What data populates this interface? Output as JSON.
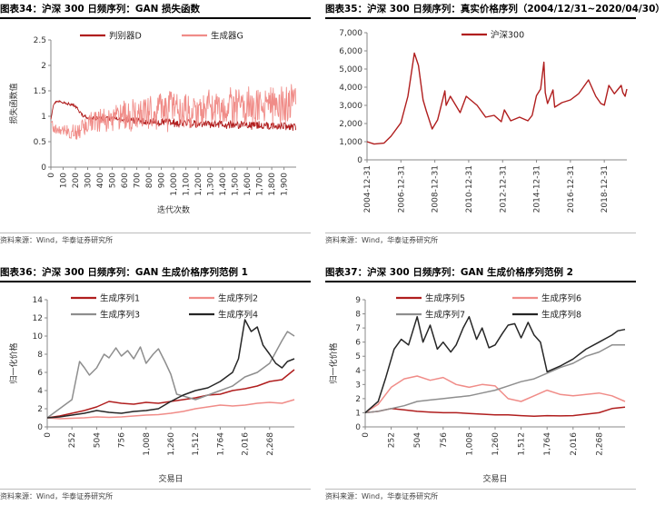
{
  "source": "资料来源：Wind，华泰证券研究所",
  "colors": {
    "dark_red": "#b01e1e",
    "salmon": "#f08c88",
    "gray": "#8e8e8e",
    "black": "#262626",
    "axis": "#888888"
  },
  "chart_data": [
    {
      "id": "fig34",
      "type": "line",
      "title": "图表34：沪深 300 日频序列：GAN 损失函数",
      "xlabel": "迭代次数",
      "ylabel": "损失函数值",
      "xlim": [
        0,
        1999
      ],
      "ylim": [
        0,
        2.5
      ],
      "xticks": [
        0,
        100,
        200,
        300,
        400,
        500,
        600,
        700,
        800,
        900,
        1000,
        1100,
        1200,
        1300,
        1400,
        1500,
        1600,
        1700,
        1800,
        1900
      ],
      "xtick_labels": [
        "0",
        "100",
        "200",
        "300",
        "400",
        "500",
        "600",
        "700",
        "800",
        "900",
        "1,000",
        "1,100",
        "1,200",
        "1,300",
        "1,400",
        "1,500",
        "1,600",
        "1,700",
        "1,800",
        "1,900"
      ],
      "yticks": [
        0,
        0.5,
        1,
        1.5,
        2,
        2.5
      ],
      "ytick_labels": [
        "0",
        "0.5",
        "1",
        "1.5",
        "2",
        "2.5"
      ],
      "legend": "top",
      "series": [
        {
          "name": "判别器D",
          "color": "#b01e1e",
          "x": [
            0,
            20,
            50,
            100,
            150,
            200,
            230,
            260,
            300,
            350,
            400,
            450,
            500,
            600,
            700,
            800,
            900,
            1000,
            1100,
            1200,
            1300,
            1400,
            1500,
            1600,
            1700,
            1800,
            1900,
            1999
          ],
          "y": [
            0.95,
            1.22,
            1.3,
            1.27,
            1.24,
            1.2,
            1.1,
            1.02,
            0.97,
            0.98,
            0.95,
            0.96,
            0.95,
            0.93,
            0.92,
            0.9,
            0.88,
            0.87,
            0.86,
            0.85,
            0.84,
            0.84,
            0.83,
            0.82,
            0.82,
            0.81,
            0.81,
            0.8
          ]
        },
        {
          "name": "生成器G",
          "color": "#f08c88",
          "x": [
            0,
            20,
            50,
            100,
            150,
            200,
            230,
            260,
            300,
            350,
            400,
            450,
            500,
            600,
            700,
            800,
            900,
            1000,
            1100,
            1200,
            1300,
            1400,
            1500,
            1600,
            1700,
            1800,
            1900,
            1999
          ],
          "y": [
            0.95,
            0.78,
            0.73,
            0.72,
            0.7,
            0.68,
            0.72,
            0.78,
            0.88,
            0.9,
            0.93,
            0.95,
            0.97,
            1.0,
            1.03,
            1.06,
            1.09,
            1.12,
            1.14,
            1.15,
            1.16,
            1.17,
            1.18,
            1.19,
            1.2,
            1.22,
            1.23,
            1.24
          ]
        }
      ]
    },
    {
      "id": "fig35",
      "type": "line",
      "title": "图表35：沪深 300 日频序列：真实价格序列（2004/12/31~2020/04/30）",
      "xlabel": "",
      "ylabel": "",
      "xlim": [
        "2004-12-31",
        "2020-04-30"
      ],
      "ylim": [
        0,
        7000
      ],
      "xticks": [
        "2004-12-31",
        "2006-12-31",
        "2008-12-31",
        "2010-12-31",
        "2012-12-31",
        "2014-12-31",
        "2016-12-31",
        "2018-12-31"
      ],
      "yticks": [
        0,
        1000,
        2000,
        3000,
        4000,
        5000,
        6000,
        7000
      ],
      "ytick_labels": [
        "0",
        "1,000",
        "2,000",
        "3,000",
        "4,000",
        "5,000",
        "6,000",
        "7,000"
      ],
      "legend": "top",
      "series": [
        {
          "name": "沪深300",
          "color": "#b01e1e",
          "x": [
            "2004-12-31",
            "2005-06-01",
            "2005-12-31",
            "2006-06-01",
            "2006-12-31",
            "2007-05-31",
            "2007-10-16",
            "2008-01-14",
            "2008-04-21",
            "2008-06-30",
            "2008-11-04",
            "2009-03-01",
            "2009-08-04",
            "2009-09-01",
            "2009-11-30",
            "2010-06-30",
            "2010-11-08",
            "2011-06-30",
            "2011-12-31",
            "2012-06-30",
            "2012-12-03",
            "2013-02-08",
            "2013-06-25",
            "2013-12-31",
            "2014-06-30",
            "2014-09-30",
            "2014-12-31",
            "2015-03-31",
            "2015-06-08",
            "2015-07-08",
            "2015-08-26",
            "2015-12-22",
            "2016-01-28",
            "2016-06-30",
            "2016-12-31",
            "2017-06-30",
            "2018-01-24",
            "2018-06-30",
            "2018-10-18",
            "2018-12-31",
            "2019-04-08",
            "2019-08-06",
            "2019-12-31",
            "2020-02-03",
            "2020-03-23",
            "2020-04-30"
          ],
          "y": [
            1000,
            870,
            920,
            1300,
            2040,
            3500,
            5877,
            5200,
            3300,
            2700,
            1700,
            2200,
            3800,
            3000,
            3500,
            2600,
            3500,
            3000,
            2350,
            2450,
            2100,
            2750,
            2150,
            2350,
            2150,
            2450,
            3530,
            3900,
            5380,
            3700,
            3100,
            3850,
            2900,
            3150,
            3300,
            3650,
            4400,
            3500,
            3100,
            3010,
            4100,
            3640,
            4100,
            3700,
            3500,
            3900
          ]
        }
      ]
    },
    {
      "id": "fig36",
      "type": "line",
      "title": "图表36：沪深 300 日频序列：GAN 生成价格序列范例 1",
      "xlabel": "交易日",
      "ylabel": "归一化价格",
      "xlim": [
        0,
        2520
      ],
      "ylim": [
        0,
        14
      ],
      "xticks": [
        0,
        252,
        504,
        756,
        1008,
        1260,
        1512,
        1764,
        2016,
        2268
      ],
      "xtick_labels": [
        "0",
        "252",
        "504",
        "756",
        "1,008",
        "1,260",
        "1,512",
        "1,764",
        "2,016",
        "2,268"
      ],
      "yticks": [
        0,
        2,
        4,
        6,
        8,
        10,
        12,
        14
      ],
      "ytick_labels": [
        "0",
        "2",
        "4",
        "6",
        "8",
        "10",
        "12",
        "14"
      ],
      "legend": "top",
      "series": [
        {
          "name": "生成序列1",
          "color": "#b01e1e",
          "x": [
            0,
            126,
            252,
            378,
            504,
            630,
            756,
            882,
            1008,
            1134,
            1260,
            1386,
            1512,
            1638,
            1764,
            1890,
            2016,
            2142,
            2268,
            2394,
            2520
          ],
          "y": [
            1,
            1.2,
            1.5,
            1.8,
            2.2,
            2.8,
            2.6,
            2.5,
            2.7,
            2.6,
            2.8,
            3.0,
            3.2,
            3.5,
            3.6,
            4.0,
            4.2,
            4.5,
            5.0,
            5.2,
            6.3
          ]
        },
        {
          "name": "生成序列2",
          "color": "#f08c88",
          "x": [
            0,
            126,
            252,
            378,
            504,
            630,
            756,
            882,
            1008,
            1134,
            1260,
            1386,
            1512,
            1638,
            1764,
            1890,
            2016,
            2142,
            2268,
            2394,
            2520
          ],
          "y": [
            1,
            0.9,
            0.95,
            1.0,
            1.1,
            1.05,
            1.1,
            1.2,
            1.3,
            1.35,
            1.5,
            1.7,
            2.0,
            2.2,
            2.4,
            2.3,
            2.4,
            2.6,
            2.7,
            2.6,
            3.0
          ]
        },
        {
          "name": "生成序列3",
          "color": "#8e8e8e",
          "x": [
            0,
            126,
            252,
            330,
            380,
            430,
            504,
            580,
            630,
            700,
            756,
            820,
            882,
            950,
            1008,
            1080,
            1134,
            1200,
            1260,
            1320,
            1386,
            1512,
            1638,
            1764,
            1890,
            2016,
            2142,
            2268,
            2394,
            2450,
            2520
          ],
          "y": [
            1,
            2,
            3.0,
            7.2,
            6.5,
            5.7,
            6.5,
            8.0,
            7.6,
            8.7,
            7.8,
            8.4,
            7.5,
            8.8,
            7.0,
            8.0,
            8.6,
            7.2,
            5.8,
            3.6,
            3.4,
            3.0,
            3.5,
            4.0,
            4.5,
            5.5,
            6.0,
            7.0,
            9.5,
            10.5,
            10.0
          ]
        },
        {
          "name": "生成序列4",
          "color": "#262626",
          "x": [
            0,
            126,
            252,
            378,
            504,
            630,
            756,
            882,
            1008,
            1134,
            1260,
            1386,
            1512,
            1638,
            1764,
            1890,
            1950,
            2016,
            2080,
            2142,
            2200,
            2268,
            2330,
            2394,
            2450,
            2520
          ],
          "y": [
            1,
            1.1,
            1.3,
            1.5,
            1.8,
            1.6,
            1.5,
            1.7,
            1.8,
            2.0,
            2.8,
            3.5,
            4.0,
            4.3,
            5.0,
            6.0,
            7.5,
            11.8,
            10.5,
            11.0,
            9.0,
            8.0,
            7.0,
            6.5,
            7.2,
            7.5
          ]
        }
      ]
    },
    {
      "id": "fig37",
      "type": "line",
      "title": "图表37：沪深 300 日频序列：GAN 生成价格序列范例 2",
      "xlabel": "交易日",
      "ylabel": "归一化价格",
      "xlim": [
        0,
        2520
      ],
      "ylim": [
        0,
        9
      ],
      "xticks": [
        0,
        252,
        504,
        756,
        1008,
        1260,
        1512,
        1764,
        2016,
        2268
      ],
      "xtick_labels": [
        "0",
        "252",
        "504",
        "756",
        "1,008",
        "1,260",
        "1,512",
        "1,764",
        "2,016",
        "2,268"
      ],
      "yticks": [
        0,
        1,
        2,
        3,
        4,
        5,
        6,
        7,
        8,
        9
      ],
      "ytick_labels": [
        "0",
        "1",
        "2",
        "3",
        "4",
        "5",
        "6",
        "7",
        "8",
        "9"
      ],
      "legend": "top",
      "series": [
        {
          "name": "生成序列5",
          "color": "#b01e1e",
          "x": [
            0,
            126,
            252,
            378,
            504,
            630,
            756,
            882,
            1008,
            1134,
            1260,
            1386,
            1512,
            1638,
            1764,
            1890,
            2016,
            2142,
            2268,
            2394,
            2520
          ],
          "y": [
            1,
            1.1,
            1.3,
            1.2,
            1.1,
            1.05,
            1.0,
            1.0,
            0.95,
            0.9,
            0.85,
            0.85,
            0.8,
            0.75,
            0.8,
            0.78,
            0.8,
            0.9,
            1.0,
            1.3,
            1.4
          ]
        },
        {
          "name": "生成序列6",
          "color": "#f08c88",
          "x": [
            0,
            126,
            252,
            378,
            504,
            630,
            756,
            882,
            1008,
            1134,
            1260,
            1386,
            1512,
            1638,
            1764,
            1890,
            2016,
            2142,
            2268,
            2394,
            2520
          ],
          "y": [
            1,
            1.6,
            2.8,
            3.4,
            3.6,
            3.3,
            3.5,
            3.0,
            2.8,
            3.0,
            2.9,
            2.0,
            1.8,
            2.2,
            2.6,
            2.3,
            2.2,
            2.3,
            2.4,
            2.2,
            1.8
          ]
        },
        {
          "name": "生成序列7",
          "color": "#8e8e8e",
          "x": [
            0,
            126,
            252,
            378,
            504,
            630,
            756,
            882,
            1008,
            1134,
            1260,
            1386,
            1512,
            1638,
            1764,
            1890,
            2016,
            2142,
            2268,
            2394,
            2520
          ],
          "y": [
            1,
            1.1,
            1.3,
            1.5,
            1.8,
            1.9,
            2.0,
            2.1,
            2.2,
            2.4,
            2.6,
            2.9,
            3.2,
            3.4,
            3.8,
            4.2,
            4.5,
            5.0,
            5.3,
            5.8,
            5.8
          ]
        },
        {
          "name": "生成序列8",
          "color": "#262626",
          "x": [
            0,
            126,
            200,
            280,
            350,
            420,
            504,
            560,
            630,
            700,
            756,
            830,
            882,
            950,
            1008,
            1080,
            1134,
            1200,
            1260,
            1330,
            1386,
            1450,
            1512,
            1580,
            1638,
            1700,
            1764,
            1890,
            2016,
            2142,
            2268,
            2394,
            2450,
            2520
          ],
          "y": [
            1,
            1.8,
            3.5,
            5.5,
            6.2,
            5.8,
            7.8,
            6.0,
            7.2,
            5.5,
            6.0,
            5.3,
            5.8,
            7.0,
            7.8,
            6.2,
            7.0,
            5.6,
            5.8,
            6.6,
            7.2,
            7.3,
            6.3,
            7.4,
            6.5,
            6.0,
            3.9,
            4.3,
            4.8,
            5.5,
            6.0,
            6.5,
            6.8,
            6.9
          ]
        }
      ]
    }
  ]
}
